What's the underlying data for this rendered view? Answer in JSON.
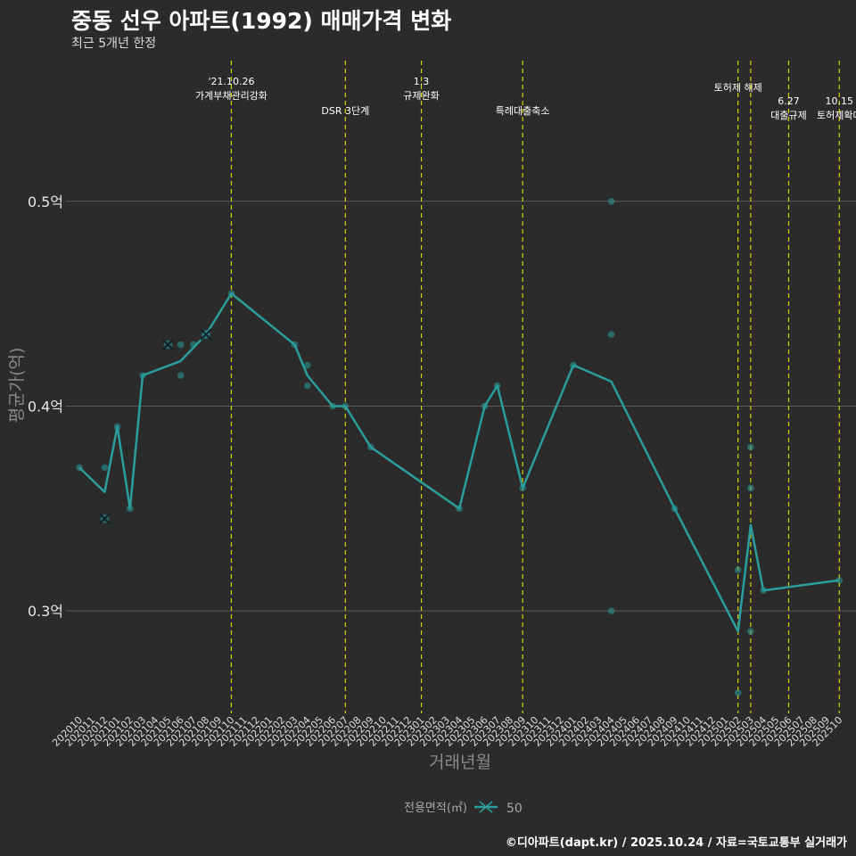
{
  "header": {
    "title": "중동 선우 아파트(1992) 매매가격 변화",
    "subtitle": "최근 5개년 한정"
  },
  "caption": "©디아파트(dapt.kr) / 2025.10.24 / 자료=국토교통부 실거래가",
  "chart_data": {
    "type": "line",
    "title": "중동 선우 아파트(1992) 매매가격 변화",
    "subtitle": "최근 5개년 한정",
    "xlabel": "거래년월",
    "ylabel": "평균가(억)",
    "ylim": [
      0.25,
      0.57
    ],
    "yticks": [
      {
        "value": 0.3,
        "label": "0.3억"
      },
      {
        "value": 0.4,
        "label": "0.4억"
      },
      {
        "value": 0.5,
        "label": "0.5억"
      }
    ],
    "x_categories": [
      "202010",
      "202011",
      "202012",
      "202101",
      "202102",
      "202103",
      "202104",
      "202105",
      "202106",
      "202107",
      "202108",
      "202109",
      "202110",
      "202111",
      "202112",
      "202201",
      "202202",
      "202203",
      "202204",
      "202205",
      "202206",
      "202207",
      "202208",
      "202209",
      "202210",
      "202211",
      "202212",
      "202301",
      "202302",
      "202303",
      "202304",
      "202305",
      "202306",
      "202307",
      "202308",
      "202309",
      "202310",
      "202311",
      "202312",
      "202401",
      "202402",
      "202403",
      "202404",
      "202405",
      "202406",
      "202407",
      "202408",
      "202409",
      "202410",
      "202411",
      "202412",
      "202501",
      "202502",
      "202503",
      "202504",
      "202505",
      "202506",
      "202507",
      "202508",
      "202509",
      "202510"
    ],
    "legend": {
      "title": "전용면적(㎡)",
      "entries": [
        "50"
      ],
      "position": "bottom"
    },
    "colors": {
      "line": "#2a9d9c",
      "vline": "#d4d400",
      "background": "#2b2b2b",
      "grid": "#5a5a5a",
      "cancel_marker": "#10202a"
    },
    "series": [
      {
        "name": "50",
        "line": [
          {
            "x": "202010",
            "y": 0.37
          },
          {
            "x": "202012",
            "y": 0.358
          },
          {
            "x": "202101",
            "y": 0.39
          },
          {
            "x": "202102",
            "y": 0.35
          },
          {
            "x": "202103",
            "y": 0.415
          },
          {
            "x": "202106",
            "y": 0.422
          },
          {
            "x": "202108",
            "y": 0.435
          },
          {
            "x": "202110",
            "y": 0.455
          },
          {
            "x": "202203",
            "y": 0.43
          },
          {
            "x": "202204",
            "y": 0.415
          },
          {
            "x": "202206",
            "y": 0.4
          },
          {
            "x": "202207",
            "y": 0.4
          },
          {
            "x": "202209",
            "y": 0.38
          },
          {
            "x": "202304",
            "y": 0.35
          },
          {
            "x": "202306",
            "y": 0.4
          },
          {
            "x": "202307",
            "y": 0.41
          },
          {
            "x": "202309",
            "y": 0.36
          },
          {
            "x": "202401",
            "y": 0.42
          },
          {
            "x": "202404",
            "y": 0.412
          },
          {
            "x": "202409",
            "y": 0.35
          },
          {
            "x": "202502",
            "y": 0.29
          },
          {
            "x": "202503",
            "y": 0.342
          },
          {
            "x": "202504",
            "y": 0.31
          },
          {
            "x": "202510",
            "y": 0.315
          }
        ],
        "points": [
          {
            "x": "202010",
            "y": 0.37
          },
          {
            "x": "202012",
            "y": 0.37
          },
          {
            "x": "202101",
            "y": 0.39
          },
          {
            "x": "202102",
            "y": 0.35
          },
          {
            "x": "202103",
            "y": 0.415
          },
          {
            "x": "202106",
            "y": 0.43
          },
          {
            "x": "202106",
            "y": 0.415
          },
          {
            "x": "202107",
            "y": 0.43
          },
          {
            "x": "202108",
            "y": 0.435
          },
          {
            "x": "202110",
            "y": 0.455
          },
          {
            "x": "202203",
            "y": 0.43
          },
          {
            "x": "202204",
            "y": 0.42
          },
          {
            "x": "202204",
            "y": 0.41
          },
          {
            "x": "202206",
            "y": 0.4
          },
          {
            "x": "202207",
            "y": 0.4
          },
          {
            "x": "202209",
            "y": 0.38
          },
          {
            "x": "202304",
            "y": 0.35
          },
          {
            "x": "202306",
            "y": 0.4
          },
          {
            "x": "202307",
            "y": 0.41
          },
          {
            "x": "202309",
            "y": 0.36
          },
          {
            "x": "202401",
            "y": 0.42
          },
          {
            "x": "202404",
            "y": 0.5
          },
          {
            "x": "202404",
            "y": 0.435
          },
          {
            "x": "202404",
            "y": 0.3
          },
          {
            "x": "202409",
            "y": 0.35
          },
          {
            "x": "202502",
            "y": 0.32
          },
          {
            "x": "202502",
            "y": 0.26
          },
          {
            "x": "202503",
            "y": 0.38
          },
          {
            "x": "202503",
            "y": 0.36
          },
          {
            "x": "202503",
            "y": 0.29
          },
          {
            "x": "202504",
            "y": 0.31
          },
          {
            "x": "202510",
            "y": 0.315
          }
        ],
        "cancelled": [
          {
            "x": "202012",
            "y": 0.345
          },
          {
            "x": "202105",
            "y": 0.43
          },
          {
            "x": "202108",
            "y": 0.435
          }
        ]
      }
    ],
    "events": [
      {
        "x": "202110",
        "lines": [
          "'21.10.26",
          "가계부채관리강화"
        ],
        "row": 0
      },
      {
        "x": "202207",
        "lines": [
          "DSR 3단계"
        ],
        "row": 2
      },
      {
        "x": "202301",
        "lines": [
          "1.3",
          "규제완화"
        ],
        "row": 0
      },
      {
        "x": "202309",
        "lines": [
          "특례대출축소"
        ],
        "row": 2
      },
      {
        "x": "202502",
        "lines": [
          "토허제 해제"
        ],
        "row": 1
      },
      {
        "x": "202503",
        "lines": [],
        "row": 0
      },
      {
        "x": "202506",
        "lines": [
          "6.27",
          "대출규제"
        ],
        "row": 1
      },
      {
        "x": "202510",
        "lines": [
          "10.15",
          "토허제확대"
        ],
        "row": 1
      }
    ]
  }
}
